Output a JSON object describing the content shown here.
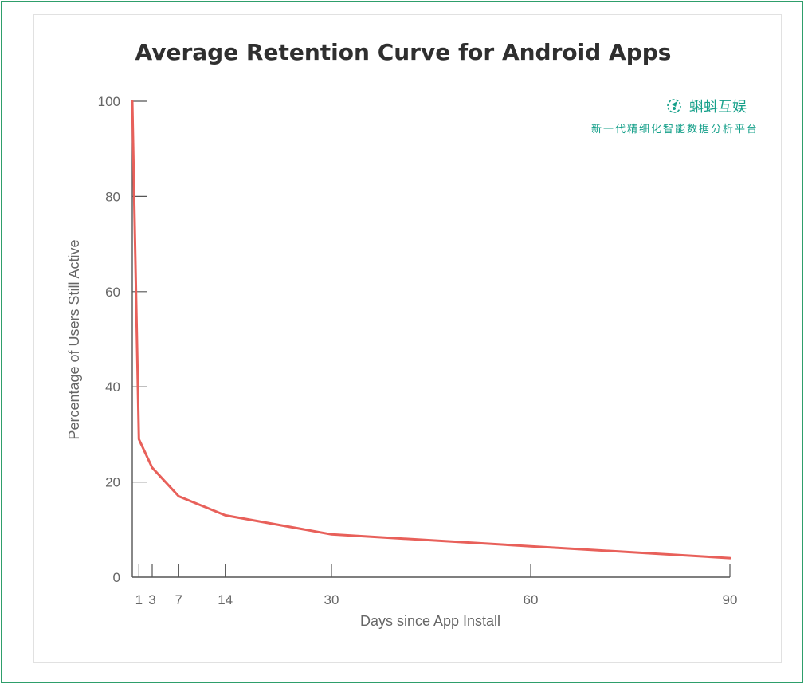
{
  "chart_data": {
    "type": "line",
    "title": "Average Retention Curve for Android Apps",
    "xlabel": "Days since App Install",
    "ylabel": "Percentage of Users Still Active",
    "xlim": [
      0,
      90
    ],
    "ylim": [
      0,
      100
    ],
    "xticks": [
      1,
      3,
      7,
      14,
      30,
      60,
      90
    ],
    "yticks": [
      0,
      20,
      40,
      60,
      80,
      100
    ],
    "grid": false,
    "series": [
      {
        "color": "#e8605a",
        "x": [
          0,
          1,
          3,
          7,
          14,
          30,
          60,
          90
        ],
        "y": [
          100,
          29,
          23,
          17,
          13,
          9,
          6.5,
          4
        ]
      }
    ]
  },
  "watermark": {
    "name": "蝌蚪互娱",
    "slogan": "新一代精细化智能数据分析平台",
    "color": "#16a08a"
  },
  "colors": {
    "border": "#2e9e6b",
    "axis": "#555555",
    "line": "#e8605a"
  }
}
